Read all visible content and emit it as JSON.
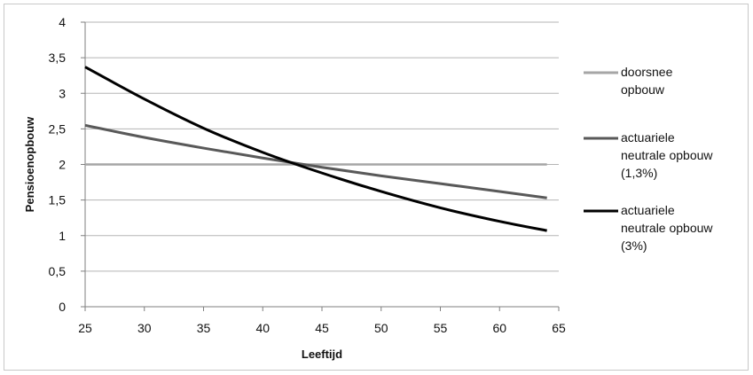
{
  "chart_data": {
    "type": "line",
    "xlabel": "Leeftijd",
    "ylabel": "Pensioenopbouw",
    "xlim": [
      25,
      65
    ],
    "ylim": [
      0,
      4
    ],
    "x_ticks": [
      "25",
      "30",
      "35",
      "40",
      "45",
      "50",
      "55",
      "60",
      "65"
    ],
    "y_ticks": [
      "0",
      "0,5",
      "1",
      "1,5",
      "2",
      "2,5",
      "3",
      "3,5",
      "4"
    ],
    "grid": "horizontal",
    "legend": "right",
    "x": [
      25,
      30,
      35,
      40,
      45,
      50,
      55,
      60,
      64
    ],
    "series": [
      {
        "name_lines": [
          "doorsnee",
          "opbouw"
        ],
        "color": "#a6a6a6",
        "values": [
          2,
          2,
          2,
          2,
          2,
          2,
          2,
          2,
          2
        ]
      },
      {
        "name_lines": [
          "actuariele",
          "neutrale opbouw",
          "(1,3%)"
        ],
        "color": "#595959",
        "values": [
          2.55,
          2.38,
          2.23,
          2.09,
          1.96,
          1.84,
          1.73,
          1.62,
          1.53
        ]
      },
      {
        "name_lines": [
          "actuariele",
          "neutrale opbouw",
          "(3%)"
        ],
        "color": "#000000",
        "values": [
          3.37,
          2.92,
          2.51,
          2.17,
          1.88,
          1.62,
          1.39,
          1.2,
          1.07
        ]
      }
    ]
  }
}
